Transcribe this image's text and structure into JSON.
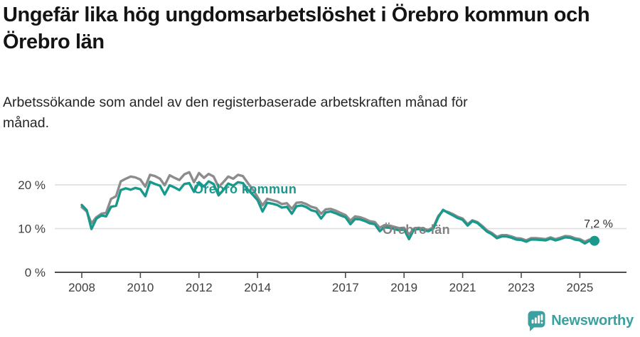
{
  "chart_data": {
    "type": "line",
    "title": "Ungefär lika hög ungdomsarbetslöshet i Örebro kommun och Örebro län",
    "subtitle": "Arbetssökande som andel av den registerbaserade arbetskraften månad för månad.",
    "xlabel": "",
    "ylabel": "",
    "xlim": [
      2007.25,
      2026.6
    ],
    "ylim": [
      0,
      25
    ],
    "grid": "horizontal",
    "legend": "inline-labels",
    "x_ticks": [
      2008,
      2010,
      2012,
      2014,
      2017,
      2019,
      2021,
      2023,
      2025
    ],
    "y_ticks": [
      {
        "value": 0,
        "label": "0 %"
      },
      {
        "value": 10,
        "label": "10 %"
      },
      {
        "value": 20,
        "label": "20 %"
      }
    ],
    "x": [
      2008,
      2008.17,
      2008.33,
      2008.5,
      2008.67,
      2008.83,
      2009,
      2009.17,
      2009.33,
      2009.5,
      2009.67,
      2009.83,
      2010,
      2010.17,
      2010.33,
      2010.5,
      2010.67,
      2010.83,
      2011,
      2011.17,
      2011.33,
      2011.5,
      2011.67,
      2011.83,
      2012,
      2012.17,
      2012.33,
      2012.5,
      2012.67,
      2012.83,
      2013,
      2013.17,
      2013.33,
      2013.5,
      2013.67,
      2013.83,
      2014,
      2014.17,
      2014.33,
      2014.5,
      2014.67,
      2014.83,
      2015,
      2015.17,
      2015.33,
      2015.5,
      2015.67,
      2015.83,
      2016,
      2016.17,
      2016.33,
      2016.5,
      2016.67,
      2016.83,
      2017,
      2017.17,
      2017.33,
      2017.5,
      2017.67,
      2017.83,
      2018,
      2018.17,
      2018.33,
      2018.5,
      2018.67,
      2018.83,
      2019,
      2019.17,
      2019.33,
      2019.5,
      2019.67,
      2019.83,
      2020,
      2020.17,
      2020.33,
      2020.5,
      2020.67,
      2020.83,
      2021,
      2021.17,
      2021.33,
      2021.5,
      2021.67,
      2021.83,
      2022,
      2022.17,
      2022.33,
      2022.5,
      2022.67,
      2022.83,
      2023,
      2023.17,
      2023.33,
      2023.5,
      2023.67,
      2023.83,
      2024,
      2024.17,
      2024.33,
      2024.5,
      2024.67,
      2024.83,
      2025,
      2025.17,
      2025.33,
      2025.5
    ],
    "series": [
      {
        "name": "Örebro län",
        "color": "#8c8c8c",
        "label_color": "#828282",
        "values": [
          14.9,
          13.9,
          11.2,
          12.6,
          13.4,
          13.6,
          16.8,
          17.4,
          20.8,
          21.4,
          21.9,
          21.7,
          21.2,
          19.6,
          22.3,
          22.0,
          21.4,
          19.9,
          22.2,
          21.6,
          21.1,
          22.4,
          22.9,
          20.6,
          22.7,
          21.6,
          22.5,
          21.9,
          19.5,
          20.6,
          21.9,
          21.4,
          22.3,
          22.0,
          20.4,
          19.0,
          17.2,
          15.3,
          16.8,
          16.5,
          16.2,
          15.6,
          15.8,
          14.5,
          15.9,
          16.0,
          15.6,
          15.0,
          14.7,
          13.4,
          14.4,
          14.5,
          14.1,
          13.6,
          13.1,
          11.8,
          12.8,
          12.6,
          12.2,
          11.7,
          11.5,
          10.2,
          10.8,
          10.7,
          10.4,
          10.1,
          10.2,
          8.6,
          10.0,
          10.2,
          9.9,
          9.7,
          10.3,
          12.9,
          14.1,
          13.8,
          13.3,
          12.7,
          12.3,
          11.0,
          11.9,
          11.5,
          10.6,
          9.6,
          9.0,
          8.1,
          8.5,
          8.5,
          8.2,
          7.8,
          7.7,
          7.3,
          7.8,
          7.8,
          7.7,
          7.6,
          8.0,
          7.6,
          7.9,
          8.3,
          8.2,
          7.8,
          7.6,
          7.0,
          7.5,
          7.3
        ]
      },
      {
        "name": "Örebro kommun",
        "color": "#18998b",
        "label_color": "#18998b",
        "values": [
          15.4,
          14.2,
          9.9,
          12.3,
          13.0,
          12.8,
          15.0,
          15.2,
          18.8,
          19.2,
          18.9,
          19.3,
          19.0,
          17.4,
          20.7,
          20.2,
          19.8,
          17.8,
          19.9,
          19.4,
          18.8,
          20.2,
          20.4,
          18.4,
          20.6,
          19.6,
          20.8,
          20.2,
          17.6,
          18.8,
          20.3,
          19.8,
          20.6,
          20.4,
          18.9,
          17.8,
          16.5,
          13.9,
          15.9,
          15.7,
          15.4,
          14.8,
          15.0,
          13.4,
          15.1,
          15.3,
          14.9,
          14.2,
          13.9,
          12.3,
          13.7,
          13.9,
          13.5,
          13.0,
          12.6,
          11.0,
          12.2,
          12.1,
          11.7,
          11.2,
          11.0,
          9.4,
          10.3,
          10.2,
          9.9,
          9.6,
          9.8,
          7.6,
          9.7,
          9.9,
          9.6,
          9.4,
          10.0,
          12.6,
          14.3,
          13.6,
          13.0,
          12.4,
          12.0,
          10.7,
          11.7,
          11.3,
          10.3,
          9.3,
          8.7,
          7.8,
          8.2,
          8.2,
          7.9,
          7.5,
          7.4,
          7.0,
          7.5,
          7.5,
          7.4,
          7.3,
          7.7,
          7.3,
          7.6,
          8.0,
          7.9,
          7.5,
          7.3,
          6.6,
          7.2,
          7.2
        ]
      }
    ],
    "end_label": {
      "text": "7,2 %",
      "value": 7.2,
      "series": "Örebro kommun"
    }
  },
  "footer": {
    "brand": "Newsworthy"
  }
}
